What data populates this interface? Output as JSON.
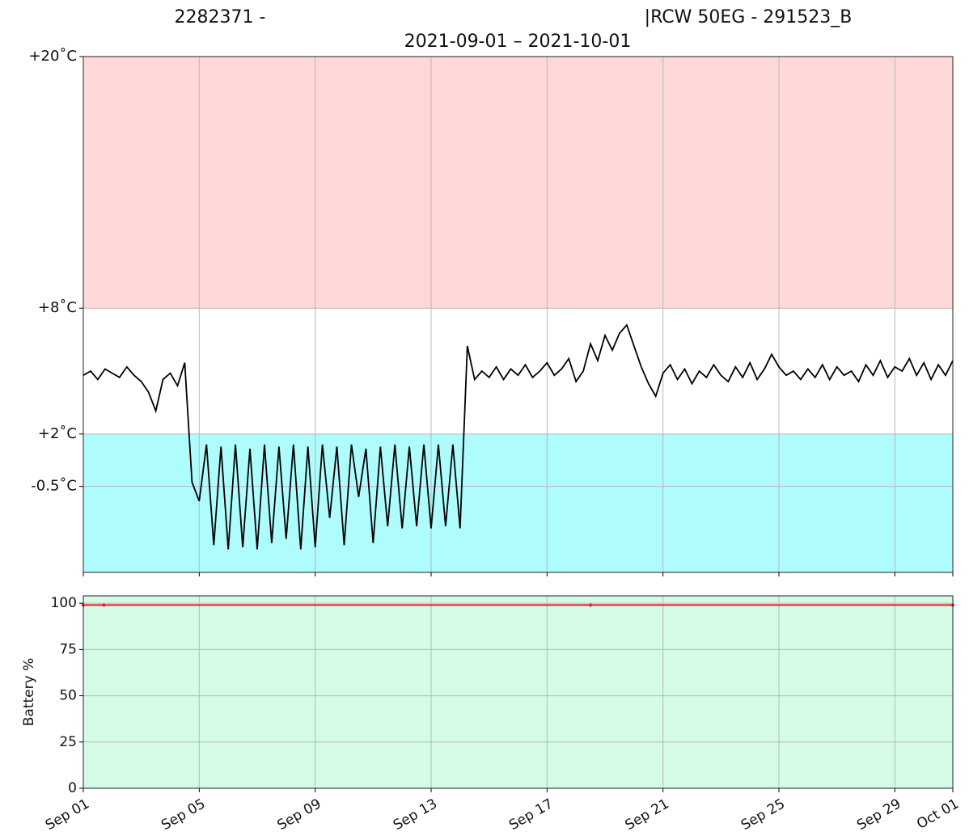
{
  "chart_data": [
    {
      "type": "line",
      "title_left": "2282371 -",
      "title_right": "|RCW 50EG - 291523_B",
      "subtitle": "2021-09-01 – 2021-10-01",
      "xlim": [
        "2021-09-01",
        "2021-10-01"
      ],
      "xticks": [
        "2021-09-01",
        "2021-09-05",
        "2021-09-09",
        "2021-09-13",
        "2021-09-17",
        "2021-09-21",
        "2021-09-25",
        "2021-09-29",
        "2021-10-01"
      ],
      "ylim": [
        -4.6,
        20
      ],
      "yticks": [
        {
          "value": 20,
          "label": "+20˚C"
        },
        {
          "value": 8,
          "label": "+8˚C"
        },
        {
          "value": 2,
          "label": "+2˚C"
        },
        {
          "value": -0.5,
          "label": "-0.5˚C"
        }
      ],
      "grid": true,
      "bands": [
        {
          "range": [
            8,
            20
          ],
          "color": "#ffd9d9"
        },
        {
          "range": [
            -4.6,
            2
          ],
          "color": "#aefcfc"
        }
      ],
      "series": [
        {
          "color": "#000000",
          "x": [
            "2021-09-01T00:00",
            "2021-09-01T06:00",
            "2021-09-01T12:00",
            "2021-09-01T18:00",
            "2021-09-02T00:00",
            "2021-09-02T06:00",
            "2021-09-02T12:00",
            "2021-09-02T18:00",
            "2021-09-03T00:00",
            "2021-09-03T06:00",
            "2021-09-03T12:00",
            "2021-09-03T18:00",
            "2021-09-04T00:00",
            "2021-09-04T06:00",
            "2021-09-04T12:00",
            "2021-09-04T18:00",
            "2021-09-05T00:00",
            "2021-09-05T06:00",
            "2021-09-05T12:00",
            "2021-09-05T18:00",
            "2021-09-06T00:00",
            "2021-09-06T06:00",
            "2021-09-06T12:00",
            "2021-09-06T18:00",
            "2021-09-07T00:00",
            "2021-09-07T06:00",
            "2021-09-07T12:00",
            "2021-09-07T18:00",
            "2021-09-08T00:00",
            "2021-09-08T06:00",
            "2021-09-08T12:00",
            "2021-09-08T18:00",
            "2021-09-09T00:00",
            "2021-09-09T06:00",
            "2021-09-09T12:00",
            "2021-09-09T18:00",
            "2021-09-10T00:00",
            "2021-09-10T06:00",
            "2021-09-10T12:00",
            "2021-09-10T18:00",
            "2021-09-11T00:00",
            "2021-09-11T06:00",
            "2021-09-11T12:00",
            "2021-09-11T18:00",
            "2021-09-12T00:00",
            "2021-09-12T06:00",
            "2021-09-12T12:00",
            "2021-09-12T18:00",
            "2021-09-13T00:00",
            "2021-09-13T06:00",
            "2021-09-13T12:00",
            "2021-09-13T18:00",
            "2021-09-14T00:00",
            "2021-09-14T06:00",
            "2021-09-14T12:00",
            "2021-09-14T18:00",
            "2021-09-15T00:00",
            "2021-09-15T06:00",
            "2021-09-15T12:00",
            "2021-09-15T18:00",
            "2021-09-16T00:00",
            "2021-09-16T06:00",
            "2021-09-16T12:00",
            "2021-09-16T18:00",
            "2021-09-17T00:00",
            "2021-09-17T06:00",
            "2021-09-17T12:00",
            "2021-09-17T18:00",
            "2021-09-18T00:00",
            "2021-09-18T06:00",
            "2021-09-18T12:00",
            "2021-09-18T18:00",
            "2021-09-19T00:00",
            "2021-09-19T06:00",
            "2021-09-19T12:00",
            "2021-09-19T18:00",
            "2021-09-20T00:00",
            "2021-09-20T06:00",
            "2021-09-20T12:00",
            "2021-09-20T18:00",
            "2021-09-21T00:00",
            "2021-09-21T06:00",
            "2021-09-21T12:00",
            "2021-09-21T18:00",
            "2021-09-22T00:00",
            "2021-09-22T06:00",
            "2021-09-22T12:00",
            "2021-09-22T18:00",
            "2021-09-23T00:00",
            "2021-09-23T06:00",
            "2021-09-23T12:00",
            "2021-09-23T18:00",
            "2021-09-24T00:00",
            "2021-09-24T06:00",
            "2021-09-24T12:00",
            "2021-09-24T18:00",
            "2021-09-25T00:00",
            "2021-09-25T06:00",
            "2021-09-25T12:00",
            "2021-09-25T18:00",
            "2021-09-26T00:00",
            "2021-09-26T06:00",
            "2021-09-26T12:00",
            "2021-09-26T18:00",
            "2021-09-27T00:00",
            "2021-09-27T06:00",
            "2021-09-27T12:00",
            "2021-09-27T18:00",
            "2021-09-28T00:00",
            "2021-09-28T06:00",
            "2021-09-28T12:00",
            "2021-09-28T18:00",
            "2021-09-29T00:00",
            "2021-09-29T06:00",
            "2021-09-29T12:00",
            "2021-09-29T18:00",
            "2021-09-30T00:00",
            "2021-09-30T06:00",
            "2021-09-30T12:00",
            "2021-09-30T18:00",
            "2021-10-01T00:00"
          ],
          "values": [
            4.8,
            5.0,
            4.6,
            5.1,
            4.9,
            4.7,
            5.2,
            4.8,
            4.5,
            4.0,
            3.1,
            4.6,
            4.9,
            4.3,
            5.4,
            -0.3,
            -1.2,
            1.5,
            -3.3,
            1.4,
            -3.5,
            1.5,
            -3.4,
            1.3,
            -3.5,
            1.5,
            -3.2,
            1.4,
            -3.0,
            1.5,
            -3.5,
            1.4,
            -3.4,
            1.5,
            -2.0,
            1.4,
            -3.3,
            1.5,
            -1.0,
            1.3,
            -3.2,
            1.4,
            -2.4,
            1.5,
            -2.5,
            1.4,
            -2.4,
            1.5,
            -2.5,
            1.5,
            -2.4,
            1.5,
            -2.5,
            6.2,
            4.6,
            5.0,
            4.7,
            5.2,
            4.6,
            5.1,
            4.8,
            5.3,
            4.7,
            5.0,
            5.4,
            4.8,
            5.1,
            5.6,
            4.5,
            5.0,
            6.3,
            5.5,
            6.7,
            6.0,
            6.8,
            7.2,
            6.2,
            5.2,
            4.4,
            3.8,
            4.9,
            5.3,
            4.6,
            5.1,
            4.4,
            5.0,
            4.7,
            5.3,
            4.8,
            4.5,
            5.2,
            4.7,
            5.4,
            4.6,
            5.1,
            5.8,
            5.2,
            4.8,
            5.0,
            4.6,
            5.1,
            4.7,
            5.3,
            4.6,
            5.2,
            4.8,
            5.0,
            4.5,
            5.3,
            4.8,
            5.5,
            4.7,
            5.2,
            5.0,
            5.6,
            4.8,
            5.4,
            4.6,
            5.3,
            4.8,
            5.5
          ]
        }
      ]
    },
    {
      "type": "line",
      "ylabel": "Battery %",
      "background": "#d4fbe6",
      "xlim": [
        "2021-09-01",
        "2021-10-01"
      ],
      "xticks": [
        {
          "value": "2021-09-01",
          "label": "Sep 01"
        },
        {
          "value": "2021-09-05",
          "label": "Sep 05"
        },
        {
          "value": "2021-09-09",
          "label": "Sep 09"
        },
        {
          "value": "2021-09-13",
          "label": "Sep 13"
        },
        {
          "value": "2021-09-17",
          "label": "Sep 17"
        },
        {
          "value": "2021-09-21",
          "label": "Sep 21"
        },
        {
          "value": "2021-09-25",
          "label": "Sep 25"
        },
        {
          "value": "2021-09-29",
          "label": "Sep 29"
        },
        {
          "value": "2021-10-01",
          "label": "Oct 01"
        }
      ],
      "ylim": [
        0,
        104
      ],
      "yticks": [
        0,
        25,
        50,
        75,
        100
      ],
      "grid": true,
      "series": [
        {
          "color": "#e8202a",
          "x": [
            "2021-09-01T00:00",
            "2021-09-01T17:00",
            "2021-09-18T12:00",
            "2021-10-01T00:00"
          ],
          "values": [
            99,
            99,
            99,
            99
          ]
        }
      ]
    }
  ]
}
